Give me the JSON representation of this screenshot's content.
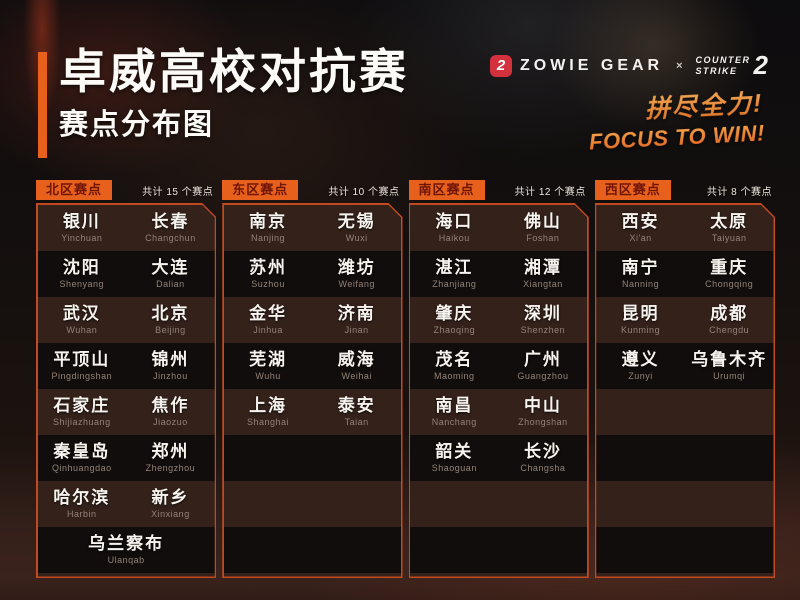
{
  "header": {
    "title": "卓威高校对抗赛",
    "subtitle": "赛点分布图",
    "zowie_icon_glyph": "2",
    "zowie_text": "ZOWIE GEAR",
    "collab_x": "×",
    "cs_line1": "COUNTER",
    "cs_line2": "STRIKE",
    "cs_number": "2",
    "slogan_cn": "拼尽全力!",
    "slogan_en": "FOCUS TO WIN!"
  },
  "colors": {
    "accent_orange": "#e8611c",
    "panel_border": "#c24a20",
    "zowie_red": "#d4313f",
    "slogan_orange": "#e87b2a"
  },
  "regions": [
    {
      "name": "北区赛点",
      "count_label": "共计 15 个赛点",
      "rows": [
        [
          {
            "cn": "银川",
            "en": "Yinchuan"
          },
          {
            "cn": "长春",
            "en": "Changchun"
          }
        ],
        [
          {
            "cn": "沈阳",
            "en": "Shenyang"
          },
          {
            "cn": "大连",
            "en": "Dalian"
          }
        ],
        [
          {
            "cn": "武汉",
            "en": "Wuhan"
          },
          {
            "cn": "北京",
            "en": "Beijing"
          }
        ],
        [
          {
            "cn": "平顶山",
            "en": "Pingdingshan"
          },
          {
            "cn": "锦州",
            "en": "Jinzhou"
          }
        ],
        [
          {
            "cn": "石家庄",
            "en": "Shijiazhuang"
          },
          {
            "cn": "焦作",
            "en": "Jiaozuo"
          }
        ],
        [
          {
            "cn": "秦皇岛",
            "en": "Qinhuangdao"
          },
          {
            "cn": "郑州",
            "en": "Zhengzhou"
          }
        ],
        [
          {
            "cn": "哈尔滨",
            "en": "Harbin"
          },
          {
            "cn": "新乡",
            "en": "Xinxiang"
          }
        ],
        [
          {
            "cn": "乌兰察布",
            "en": "Ulanqab"
          }
        ]
      ]
    },
    {
      "name": "东区赛点",
      "count_label": "共计 10 个赛点",
      "rows": [
        [
          {
            "cn": "南京",
            "en": "Nanjing"
          },
          {
            "cn": "无锡",
            "en": "Wuxi"
          }
        ],
        [
          {
            "cn": "苏州",
            "en": "Suzhou"
          },
          {
            "cn": "潍坊",
            "en": "Weifang"
          }
        ],
        [
          {
            "cn": "金华",
            "en": "Jinhua"
          },
          {
            "cn": "济南",
            "en": "Jinan"
          }
        ],
        [
          {
            "cn": "芜湖",
            "en": "Wuhu"
          },
          {
            "cn": "威海",
            "en": "Weihai"
          }
        ],
        [
          {
            "cn": "上海",
            "en": "Shanghai"
          },
          {
            "cn": "泰安",
            "en": "Taian"
          }
        ]
      ]
    },
    {
      "name": "南区赛点",
      "count_label": "共计 12 个赛点",
      "rows": [
        [
          {
            "cn": "海口",
            "en": "Haikou"
          },
          {
            "cn": "佛山",
            "en": "Foshan"
          }
        ],
        [
          {
            "cn": "湛江",
            "en": "Zhanjiang"
          },
          {
            "cn": "湘潭",
            "en": "Xiangtan"
          }
        ],
        [
          {
            "cn": "肇庆",
            "en": "Zhaoqing"
          },
          {
            "cn": "深圳",
            "en": "Shenzhen"
          }
        ],
        [
          {
            "cn": "茂名",
            "en": "Maoming"
          },
          {
            "cn": "广州",
            "en": "Guangzhou"
          }
        ],
        [
          {
            "cn": "南昌",
            "en": "Nanchang"
          },
          {
            "cn": "中山",
            "en": "Zhongshan"
          }
        ],
        [
          {
            "cn": "韶关",
            "en": "Shaoguan"
          },
          {
            "cn": "长沙",
            "en": "Changsha"
          }
        ]
      ]
    },
    {
      "name": "西区赛点",
      "count_label": "共计 8 个赛点",
      "rows": [
        [
          {
            "cn": "西安",
            "en": "Xi'an"
          },
          {
            "cn": "太原",
            "en": "Taiyuan"
          }
        ],
        [
          {
            "cn": "南宁",
            "en": "Nanning"
          },
          {
            "cn": "重庆",
            "en": "Chongqing"
          }
        ],
        [
          {
            "cn": "昆明",
            "en": "Kunming"
          },
          {
            "cn": "成都",
            "en": "Chengdu"
          }
        ],
        [
          {
            "cn": "遵义",
            "en": "Zunyi"
          },
          {
            "cn": "乌鲁木齐",
            "en": "Urumqi"
          }
        ]
      ]
    }
  ]
}
